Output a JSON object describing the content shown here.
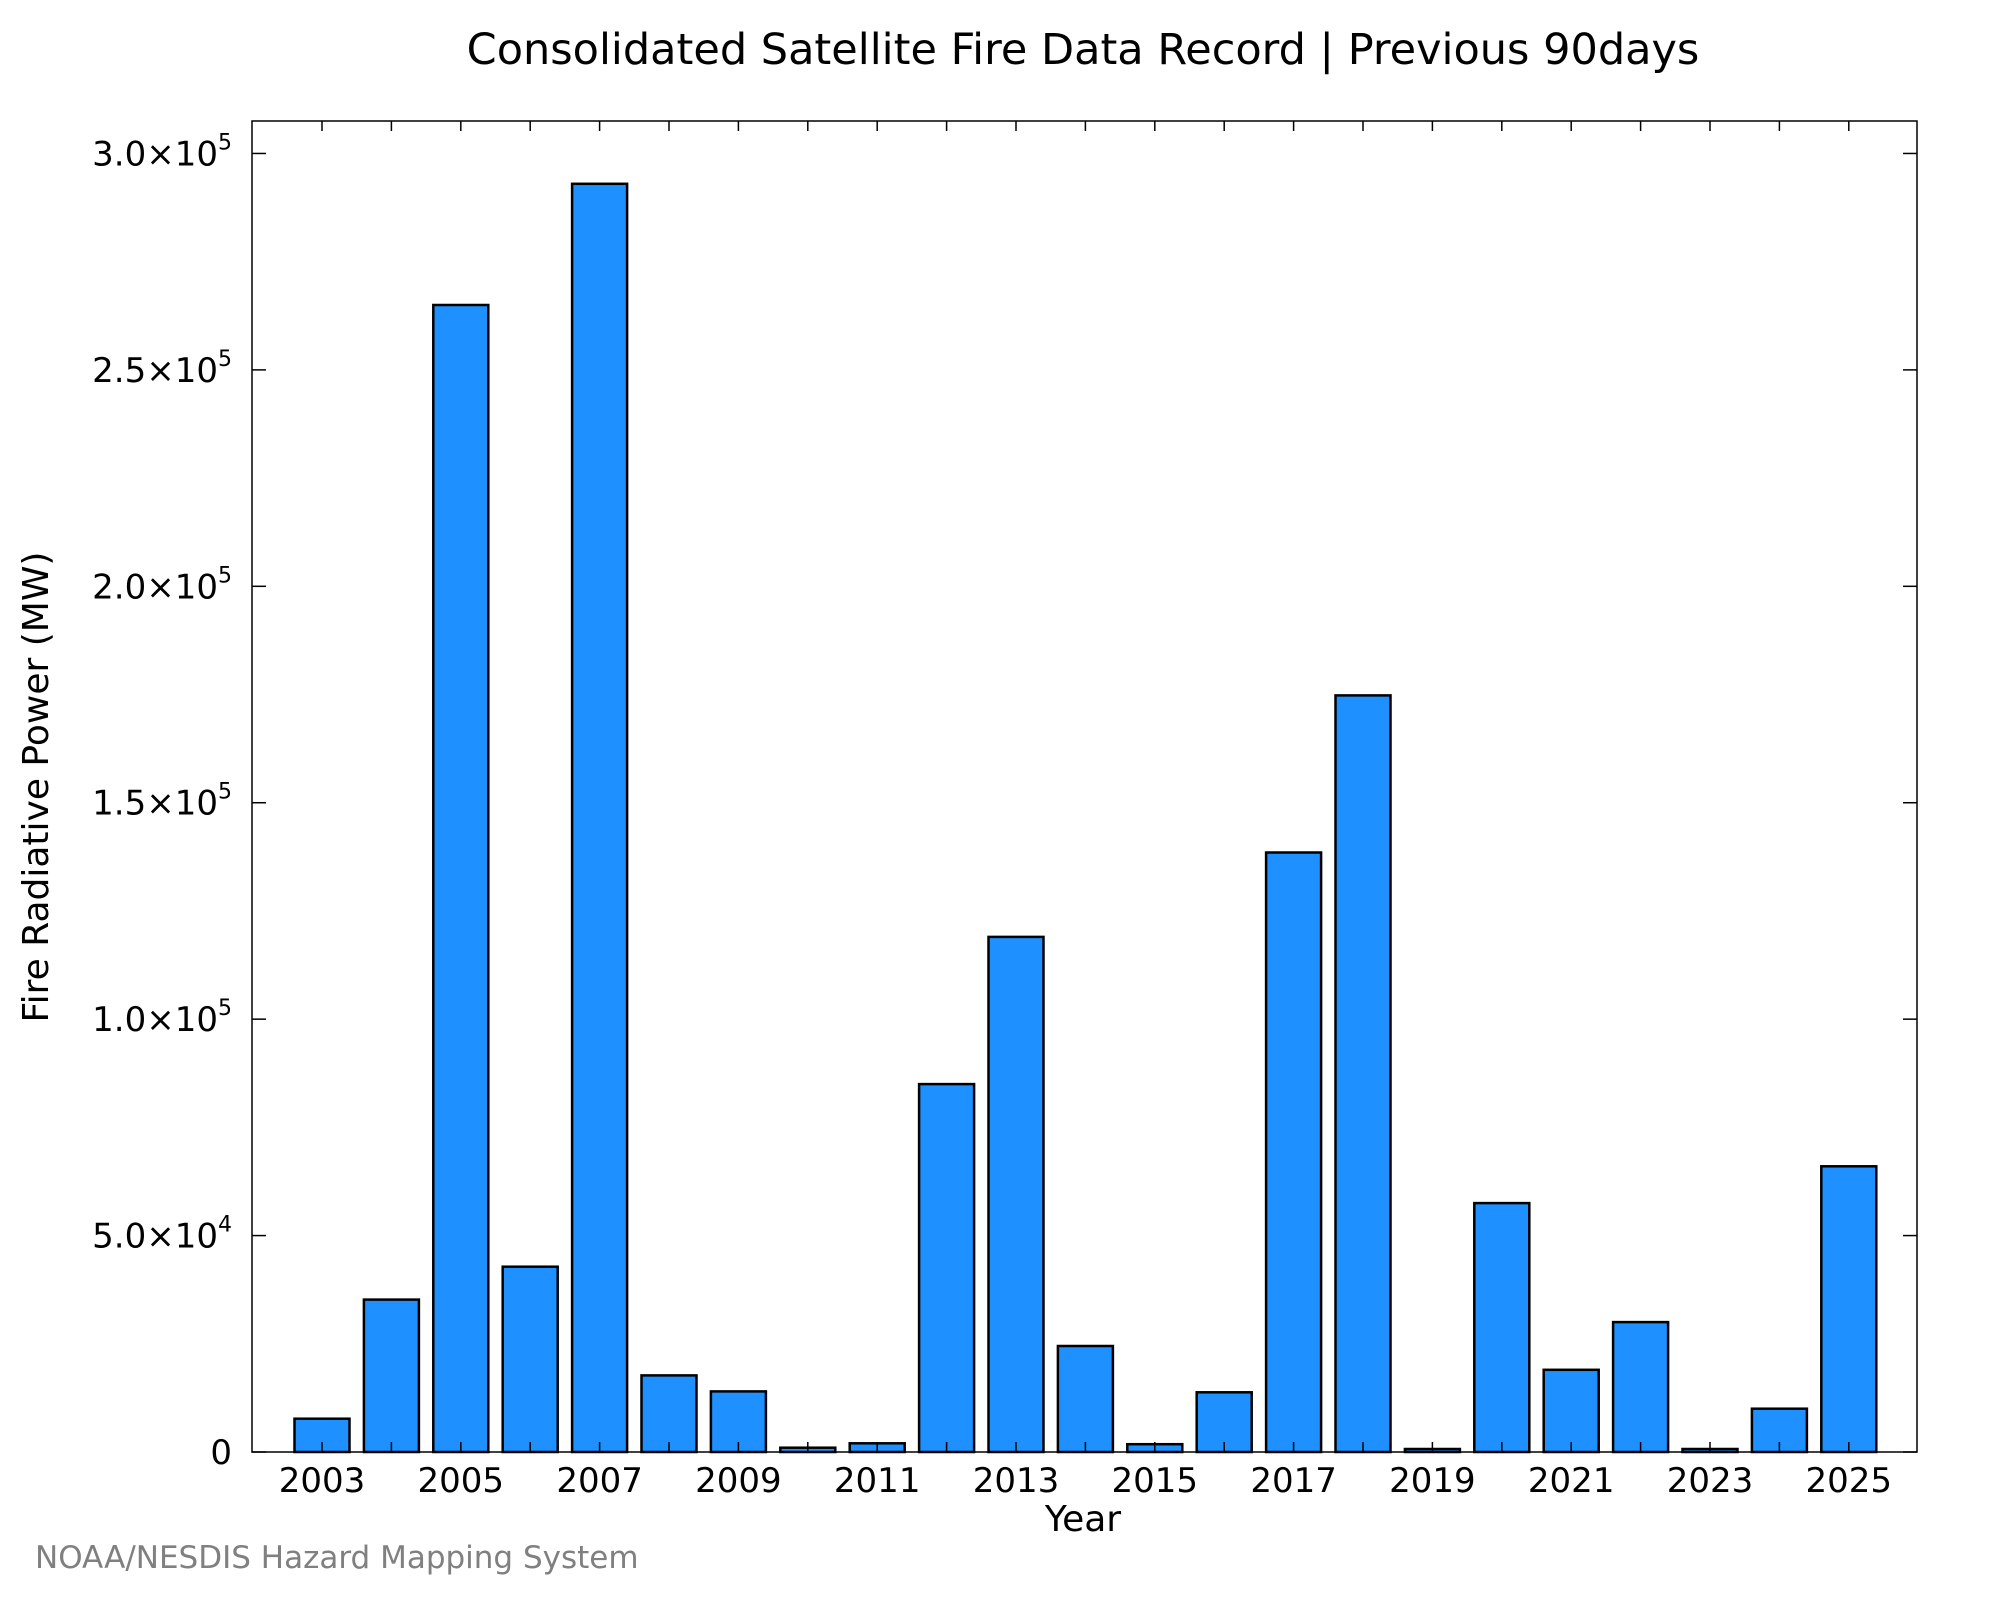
{
  "colors": {
    "bar_fill": "#1e90ff",
    "bar_stroke": "#000000",
    "credit": "#808080"
  },
  "credit": "NOAA/NESDIS Hazard Mapping System",
  "chart_data": {
    "type": "bar",
    "title": "Consolidated Satellite Fire Data Record | Previous 90days",
    "xlabel": "Year",
    "ylabel": "Fire Radiative Power (MW)",
    "ylim": [
      0,
      307500
    ],
    "grid": false,
    "yticks": [
      {
        "value": 0,
        "mantissa": "0",
        "exp": ""
      },
      {
        "value": 50000,
        "mantissa": "5.0×10",
        "exp": "4"
      },
      {
        "value": 100000,
        "mantissa": "1.0×10",
        "exp": "5"
      },
      {
        "value": 150000,
        "mantissa": "1.5×10",
        "exp": "5"
      },
      {
        "value": 200000,
        "mantissa": "2.0×10",
        "exp": "5"
      },
      {
        "value": 250000,
        "mantissa": "2.5×10",
        "exp": "5"
      },
      {
        "value": 300000,
        "mantissa": "3.0×10",
        "exp": "5"
      }
    ],
    "xticks": [
      "2003",
      "2005",
      "2007",
      "2009",
      "2011",
      "2013",
      "2015",
      "2017",
      "2019",
      "2021",
      "2023",
      "2025"
    ],
    "categories": [
      "2003",
      "2004",
      "2005",
      "2006",
      "2007",
      "2008",
      "2009",
      "2010",
      "2011",
      "2012",
      "2013",
      "2014",
      "2015",
      "2016",
      "2017",
      "2018",
      "2019",
      "2020",
      "2021",
      "2022",
      "2023",
      "2024",
      "2025"
    ],
    "values": [
      7700,
      35200,
      265000,
      42800,
      293000,
      17700,
      14000,
      1000,
      2000,
      85000,
      119000,
      24500,
      1800,
      13800,
      138500,
      174800,
      700,
      57500,
      19000,
      30000,
      700,
      10000,
      66000
    ]
  }
}
